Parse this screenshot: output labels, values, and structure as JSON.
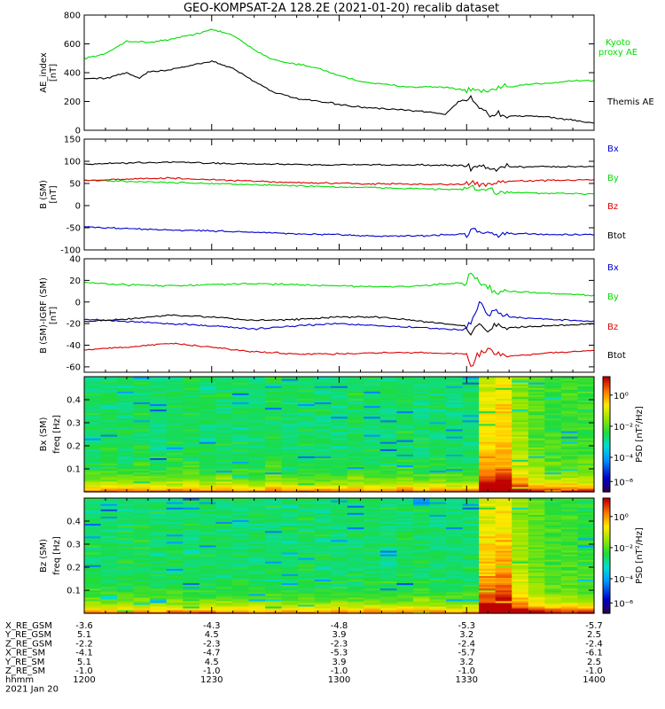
{
  "title": "GEO-KOMPSAT-2A 128.2E (2021-01-20) recalib dataset",
  "colors": {
    "black": "#000000",
    "green": "#00dd00",
    "red": "#dd0000",
    "blue": "#0000cc"
  },
  "chart_data": [
    {
      "type": "line",
      "panel": "AE index",
      "ylabel": [
        "AE_index",
        "[nT]"
      ],
      "ylim": [
        0,
        800
      ],
      "yticks": [
        "0",
        "200",
        "400",
        "600",
        "800"
      ],
      "xlim": [
        0,
        120
      ],
      "series": [
        {
          "name": "Kyoto proxy AE",
          "legend": [
            "Kyoto",
            "proxy AE"
          ],
          "color": "#00dd00",
          "x": [
            0,
            5,
            10,
            15,
            20,
            25,
            30,
            35,
            40,
            43,
            46,
            50,
            55,
            60,
            65,
            70,
            75,
            80,
            85,
            90,
            95,
            100,
            105,
            110,
            115,
            120
          ],
          "y": [
            500,
            530,
            620,
            610,
            630,
            660,
            700,
            660,
            560,
            510,
            480,
            460,
            430,
            380,
            340,
            320,
            305,
            300,
            300,
            275,
            270,
            300,
            320,
            330,
            345,
            345
          ]
        },
        {
          "name": "Themis AE",
          "legend": [
            "Themis AE"
          ],
          "color": "#000000",
          "x": [
            0,
            5,
            10,
            13,
            15,
            20,
            25,
            30,
            35,
            40,
            45,
            50,
            55,
            60,
            65,
            70,
            75,
            80,
            85,
            88,
            91,
            94,
            96,
            100,
            105,
            110,
            115,
            120
          ],
          "y": [
            360,
            360,
            400,
            360,
            405,
            420,
            450,
            480,
            430,
            340,
            260,
            220,
            200,
            180,
            160,
            150,
            140,
            130,
            110,
            200,
            220,
            130,
            110,
            100,
            100,
            90,
            70,
            50
          ]
        }
      ]
    },
    {
      "type": "line",
      "panel": "B (SM)",
      "ylabel": [
        "B (SM)",
        "[nT]"
      ],
      "ylim": [
        -100,
        150
      ],
      "yticks": [
        "-100",
        "-50",
        "0",
        "50",
        "100",
        "150"
      ],
      "xlim": [
        0,
        120
      ],
      "series": [
        {
          "name": "Bx",
          "legend": [
            "Bx"
          ],
          "color": "#0000cc",
          "x": [
            0,
            10,
            20,
            30,
            40,
            50,
            60,
            70,
            80,
            90,
            91,
            93,
            95,
            97,
            100,
            110,
            120
          ],
          "y": [
            -48,
            -52,
            -55,
            -57,
            -60,
            -64,
            -66,
            -69,
            -68,
            -64,
            -50,
            -62,
            -60,
            -64,
            -63,
            -65,
            -66
          ]
        },
        {
          "name": "By",
          "legend": [
            "By"
          ],
          "color": "#00dd00",
          "x": [
            0,
            10,
            20,
            30,
            40,
            50,
            60,
            70,
            80,
            90,
            91,
            93,
            95,
            97,
            100,
            110,
            120
          ],
          "y": [
            57,
            55,
            52,
            50,
            47,
            45,
            42,
            40,
            38,
            36,
            44,
            32,
            38,
            28,
            30,
            27,
            27
          ]
        },
        {
          "name": "Bz",
          "legend": [
            "Bz"
          ],
          "color": "#dd0000",
          "x": [
            0,
            10,
            20,
            30,
            40,
            50,
            60,
            70,
            80,
            90,
            91,
            93,
            95,
            97,
            100,
            110,
            120
          ],
          "y": [
            57,
            60,
            62,
            58,
            55,
            52,
            50,
            49,
            48,
            48,
            53,
            45,
            52,
            50,
            55,
            57,
            58
          ]
        },
        {
          "name": "Btot",
          "legend": [
            "Btot"
          ],
          "color": "#000000",
          "x": [
            0,
            10,
            20,
            30,
            40,
            50,
            60,
            70,
            80,
            90,
            91,
            93,
            95,
            97,
            100,
            110,
            120
          ],
          "y": [
            93,
            96,
            98,
            96,
            94,
            93,
            92,
            92,
            92,
            90,
            82,
            90,
            86,
            86,
            87,
            88,
            88
          ]
        }
      ]
    },
    {
      "type": "line",
      "panel": "B (SM)-IGRF (SM)",
      "ylabel": [
        "B (SM)-IGRF (SM)",
        "[nT]"
      ],
      "ylim": [
        -65,
        40
      ],
      "yticks": [
        "-60",
        "-40",
        "-20",
        "0",
        "20",
        "40"
      ],
      "xlim": [
        0,
        120
      ],
      "series": [
        {
          "name": "Bx",
          "legend": [
            "Bx"
          ],
          "color": "#0000cc",
          "x": [
            0,
            10,
            20,
            30,
            40,
            50,
            60,
            70,
            80,
            90,
            91,
            93,
            95,
            97,
            100,
            110,
            120
          ],
          "y": [
            -16,
            -18,
            -20,
            -22,
            -25,
            -22,
            -20,
            -22,
            -24,
            -26,
            -20,
            0,
            -12,
            -8,
            -14,
            -16,
            -18
          ]
        },
        {
          "name": "By",
          "legend": [
            "By"
          ],
          "color": "#00dd00",
          "x": [
            0,
            10,
            20,
            30,
            40,
            50,
            60,
            70,
            80,
            90,
            91,
            93,
            95,
            97,
            100,
            110,
            120
          ],
          "y": [
            18,
            16,
            15,
            16,
            17,
            16,
            15,
            14,
            15,
            18,
            28,
            18,
            14,
            8,
            10,
            8,
            6
          ]
        },
        {
          "name": "Bz",
          "legend": [
            "Bz"
          ],
          "color": "#dd0000",
          "x": [
            0,
            10,
            20,
            30,
            40,
            50,
            60,
            70,
            80,
            90,
            91,
            93,
            95,
            97,
            100,
            110,
            120
          ],
          "y": [
            -44,
            -42,
            -38,
            -42,
            -46,
            -48,
            -48,
            -47,
            -47,
            -48,
            -58,
            -48,
            -44,
            -48,
            -50,
            -47,
            -45
          ]
        },
        {
          "name": "Btot",
          "legend": [
            "Btot"
          ],
          "color": "#000000",
          "x": [
            0,
            10,
            20,
            30,
            40,
            50,
            60,
            70,
            80,
            90,
            91,
            93,
            95,
            97,
            100,
            110,
            120
          ],
          "y": [
            -18,
            -16,
            -12,
            -14,
            -17,
            -16,
            -14,
            -14,
            -18,
            -22,
            -30,
            -20,
            -26,
            -22,
            -24,
            -22,
            -20
          ]
        }
      ]
    },
    {
      "type": "heatmap",
      "panel": "Bx (SM)",
      "ylabel": [
        "Bx (SM)",
        "freq [Hz]"
      ],
      "ylim": [
        0,
        0.5
      ],
      "yticks": [
        "0.1",
        "0.2",
        "0.3",
        "0.4"
      ],
      "colorbar": {
        "label": "PSD [nT²/Hz]",
        "ticks": [
          "10⁰",
          "10⁻²",
          "10⁻⁴",
          "10⁻⁶"
        ]
      },
      "column_strength": [
        1.0,
        1.05,
        1.0,
        1.1,
        1.0,
        1.05,
        1.1,
        1.0,
        1.05,
        1.0,
        1.0,
        1.1,
        1.0,
        1.05,
        1.0,
        1.0,
        1.05,
        1.0,
        1.0,
        1.05,
        1.0,
        1.05,
        1.0,
        1.0,
        2.2,
        2.3,
        1.7,
        1.4,
        1.3,
        1.3,
        1.3
      ]
    },
    {
      "type": "heatmap",
      "panel": "Bz (SM)",
      "ylabel": [
        "Bz (SM)",
        "freq [Hz]"
      ],
      "ylim": [
        0,
        0.5
      ],
      "yticks": [
        "0.1",
        "0.2",
        "0.3",
        "0.4"
      ],
      "colorbar": {
        "label": "PSD [nT²/Hz]",
        "ticks": [
          "10⁰",
          "10⁻²",
          "10⁻⁴",
          "10⁻⁶"
        ]
      },
      "column_strength": [
        1.05,
        1.0,
        1.05,
        1.1,
        1.0,
        1.05,
        1.0,
        1.05,
        1.0,
        1.0,
        1.05,
        1.0,
        1.0,
        1.05,
        1.0,
        1.0,
        1.0,
        1.05,
        1.0,
        1.0,
        1.05,
        1.0,
        1.0,
        1.0,
        2.3,
        2.4,
        1.8,
        1.5,
        1.3,
        1.3,
        1.25
      ]
    }
  ],
  "orbit_table": {
    "labels": [
      "X_RE_GSM",
      "Y_RE_GSM",
      "Z_RE_GSM",
      "X_RE_SM",
      "Y_RE_SM",
      "Z_RE_SM",
      "hhmm",
      "2021 Jan 20"
    ],
    "columns": [
      [
        "-3.6",
        "5.1",
        "-2.2",
        "-4.1",
        "5.1",
        "-1.0",
        "1200"
      ],
      [
        "-4.3",
        "4.5",
        "-2.3",
        "-4.7",
        "4.5",
        "-1.0",
        "1230"
      ],
      [
        "-4.8",
        "3.9",
        "-2.3",
        "-5.3",
        "3.9",
        "-1.0",
        "1300"
      ],
      [
        "-5.3",
        "3.2",
        "-2.4",
        "-5.7",
        "3.2",
        "-1.0",
        "1330"
      ],
      [
        "-5.7",
        "2.5",
        "-2.4",
        "-6.1",
        "2.5",
        "-1.0",
        "1400"
      ]
    ]
  }
}
